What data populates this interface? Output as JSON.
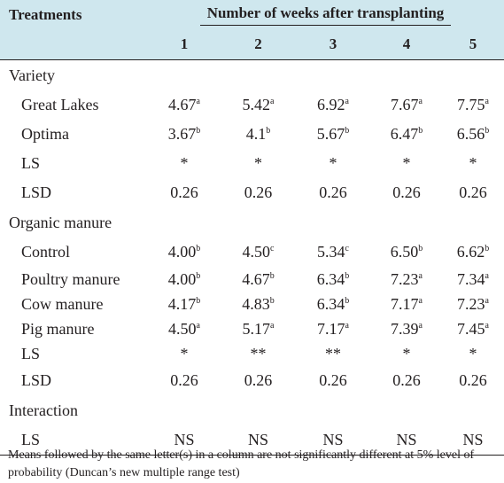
{
  "header": {
    "treatments": "Treatments",
    "weeks_title": "Number of weeks after transplanting",
    "weeks": [
      "1",
      "2",
      "3",
      "4",
      "5"
    ]
  },
  "sections": [
    {
      "title": "Variety",
      "rows": [
        {
          "label": "Great Lakes",
          "cells": [
            {
              "v": "4.67",
              "s": "a"
            },
            {
              "v": "5.42",
              "s": "a"
            },
            {
              "v": "6.92",
              "s": "a"
            },
            {
              "v": "7.67",
              "s": "a"
            },
            {
              "v": "7.75",
              "s": "a"
            }
          ]
        },
        {
          "label": "Optima",
          "cells": [
            {
              "v": "3.67",
              "s": "b"
            },
            {
              "v": "4.1",
              "s": "b"
            },
            {
              "v": "5.67",
              "s": "b"
            },
            {
              "v": "6.47",
              "s": "b"
            },
            {
              "v": "6.56",
              "s": "b"
            }
          ]
        },
        {
          "label": "LS",
          "cells": [
            {
              "v": "*",
              "s": ""
            },
            {
              "v": "*",
              "s": ""
            },
            {
              "v": "*",
              "s": ""
            },
            {
              "v": "*",
              "s": ""
            },
            {
              "v": "*",
              "s": ""
            }
          ]
        },
        {
          "label": "LSD",
          "cells": [
            {
              "v": "0.26",
              "s": ""
            },
            {
              "v": "0.26",
              "s": ""
            },
            {
              "v": "0.26",
              "s": ""
            },
            {
              "v": "0.26",
              "s": ""
            },
            {
              "v": "0.26",
              "s": ""
            }
          ]
        }
      ]
    },
    {
      "title": "Organic manure",
      "rows": [
        {
          "label": "Control",
          "cells": [
            {
              "v": "4.00",
              "s": "b"
            },
            {
              "v": "4.50",
              "s": "c"
            },
            {
              "v": "5.34",
              "s": "c"
            },
            {
              "v": "6.50",
              "s": "b"
            },
            {
              "v": "6.62",
              "s": "b"
            }
          ]
        },
        {
          "label": "Poultry manure",
          "cells": [
            {
              "v": "4.00",
              "s": "b"
            },
            {
              "v": "4.67",
              "s": "b"
            },
            {
              "v": "6.34",
              "s": "b"
            },
            {
              "v": "7.23",
              "s": "a"
            },
            {
              "v": "7.34",
              "s": "a"
            }
          ]
        },
        {
          "label": "Cow manure",
          "cells": [
            {
              "v": "4.17",
              "s": "b"
            },
            {
              "v": "4.83",
              "s": "b"
            },
            {
              "v": "6.34",
              "s": "b"
            },
            {
              "v": "7.17",
              "s": "a"
            },
            {
              "v": "7.23",
              "s": "a"
            }
          ]
        },
        {
          "label": "Pig manure",
          "cells": [
            {
              "v": "4.50",
              "s": "a"
            },
            {
              "v": "5.17",
              "s": "a"
            },
            {
              "v": "7.17",
              "s": "a"
            },
            {
              "v": "7.39",
              "s": "a"
            },
            {
              "v": "7.45",
              "s": "a"
            }
          ]
        },
        {
          "label": "LS",
          "cells": [
            {
              "v": "*",
              "s": ""
            },
            {
              "v": "**",
              "s": ""
            },
            {
              "v": "**",
              "s": ""
            },
            {
              "v": "*",
              "s": ""
            },
            {
              "v": "*",
              "s": ""
            }
          ]
        },
        {
          "label": "LSD",
          "cells": [
            {
              "v": "0.26",
              "s": ""
            },
            {
              "v": "0.26",
              "s": ""
            },
            {
              "v": "0.26",
              "s": ""
            },
            {
              "v": "0.26",
              "s": ""
            },
            {
              "v": "0.26",
              "s": ""
            }
          ]
        }
      ]
    },
    {
      "title": "Interaction",
      "rows": [
        {
          "label": "LS",
          "cells": [
            {
              "v": "NS",
              "s": ""
            },
            {
              "v": "NS",
              "s": ""
            },
            {
              "v": "NS",
              "s": ""
            },
            {
              "v": "NS",
              "s": ""
            },
            {
              "v": "NS",
              "s": ""
            }
          ]
        }
      ]
    }
  ],
  "footnote": "Means followed by the same letter(s) in a column are not significantly different at 5% level of probability (Duncan’s new multiple range test)"
}
